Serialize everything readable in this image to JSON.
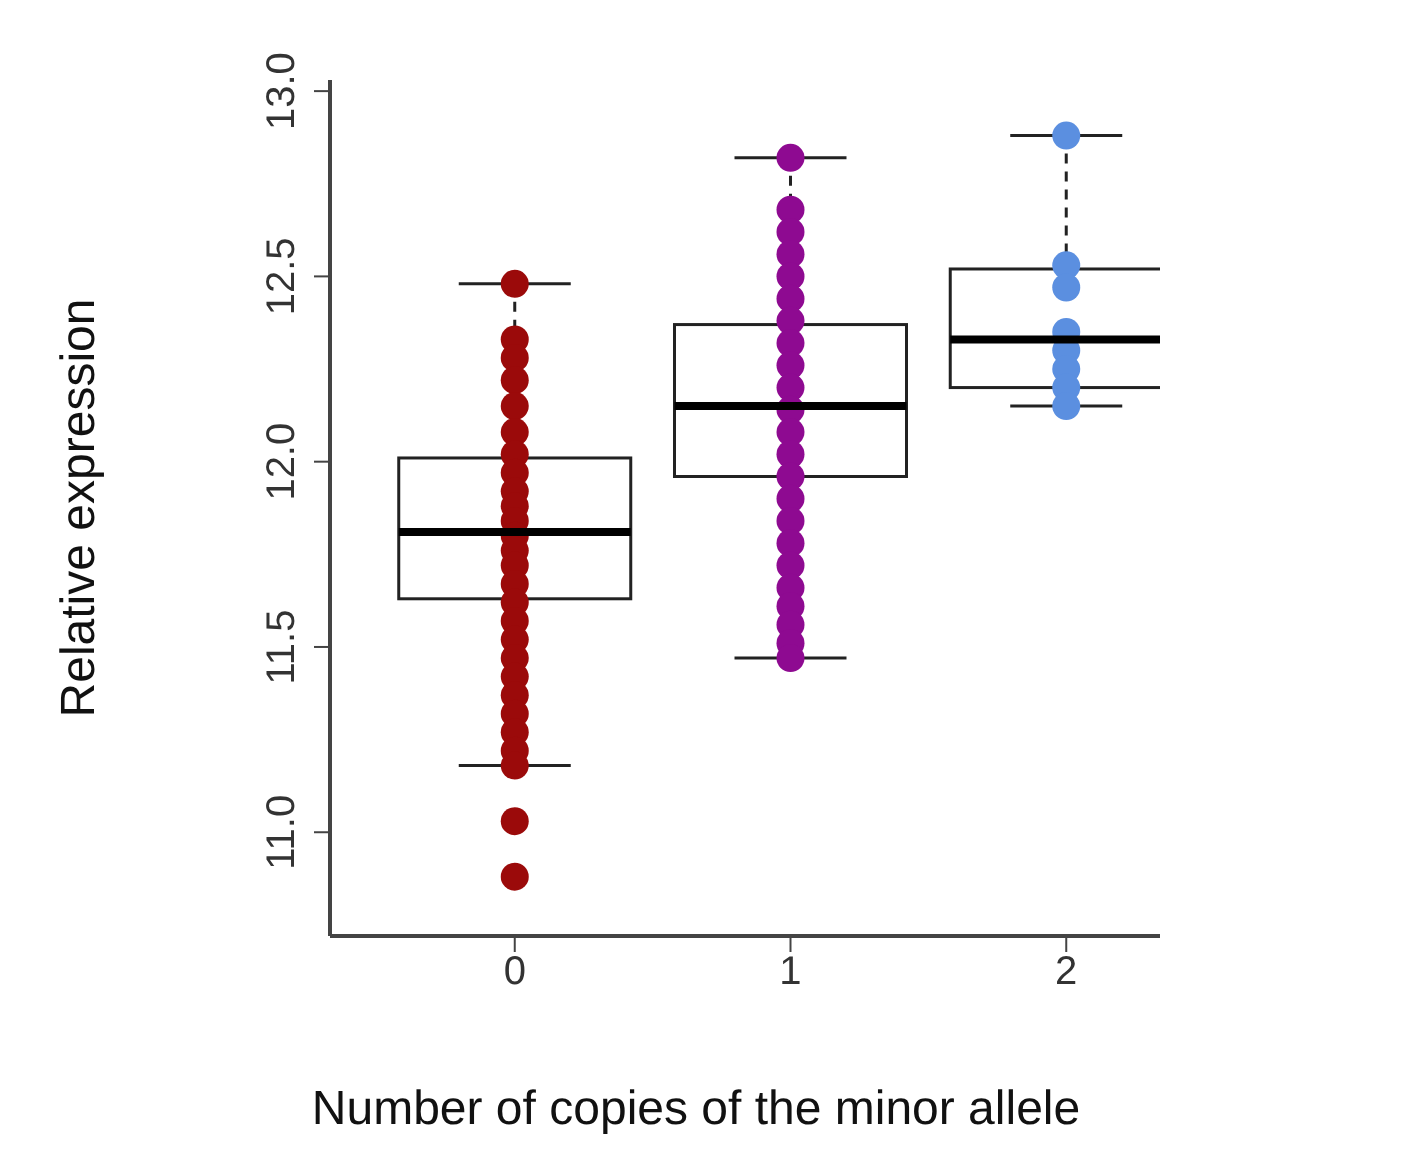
{
  "chart_data": {
    "type": "box",
    "xlabel": "Number of copies of the minor allele",
    "ylabel": "Relative expression",
    "categories": [
      "0",
      "1",
      "2"
    ],
    "boxes": [
      {
        "low": 11.18,
        "q1": 11.63,
        "median": 11.81,
        "q3": 12.01,
        "high": 12.48
      },
      {
        "low": 11.47,
        "q1": 11.96,
        "median": 12.15,
        "q3": 12.37,
        "high": 12.82
      },
      {
        "low": 12.15,
        "q1": 12.2,
        "median": 12.33,
        "q3": 12.52,
        "high": 12.88
      }
    ],
    "series": [
      {
        "type": "scatter",
        "color": "#9b0a0a",
        "x": [
          "0",
          "0",
          "0",
          "0",
          "0",
          "0",
          "0",
          "0",
          "0",
          "0",
          "0",
          "0",
          "0",
          "0",
          "0",
          "0",
          "0",
          "0",
          "0",
          "0",
          "0",
          "0",
          "0",
          "0",
          "0",
          "0",
          "0"
        ],
        "values": [
          12.48,
          12.33,
          12.28,
          12.22,
          12.15,
          12.08,
          12.02,
          11.97,
          11.92,
          11.88,
          11.84,
          11.8,
          11.76,
          11.72,
          11.67,
          11.62,
          11.57,
          11.52,
          11.47,
          11.42,
          11.37,
          11.32,
          11.27,
          11.22,
          11.18,
          11.03,
          10.88
        ]
      },
      {
        "type": "scatter",
        "color": "#8e0a91",
        "x": [
          "1",
          "1",
          "1",
          "1",
          "1",
          "1",
          "1",
          "1",
          "1",
          "1",
          "1",
          "1",
          "1",
          "1",
          "1",
          "1",
          "1",
          "1",
          "1",
          "1",
          "1",
          "1",
          "1"
        ],
        "values": [
          12.82,
          12.68,
          12.62,
          12.56,
          12.5,
          12.44,
          12.38,
          12.32,
          12.26,
          12.2,
          12.14,
          12.08,
          12.02,
          11.96,
          11.9,
          11.84,
          11.78,
          11.72,
          11.66,
          11.61,
          11.56,
          11.51,
          11.47
        ]
      },
      {
        "type": "scatter",
        "color": "#5b8fe0",
        "x": [
          "2",
          "2",
          "2",
          "2",
          "2",
          "2",
          "2",
          "2"
        ],
        "values": [
          12.88,
          12.53,
          12.47,
          12.35,
          12.3,
          12.25,
          12.2,
          12.15
        ]
      }
    ],
    "ylim": [
      10.72,
      13.03
    ],
    "yticks": [
      {
        "value": 11,
        "label": "11.0"
      },
      11.5,
      {
        "value": 12,
        "label": "12.0"
      },
      12.5,
      {
        "value": 13,
        "label": "13.0"
      }
    ]
  }
}
